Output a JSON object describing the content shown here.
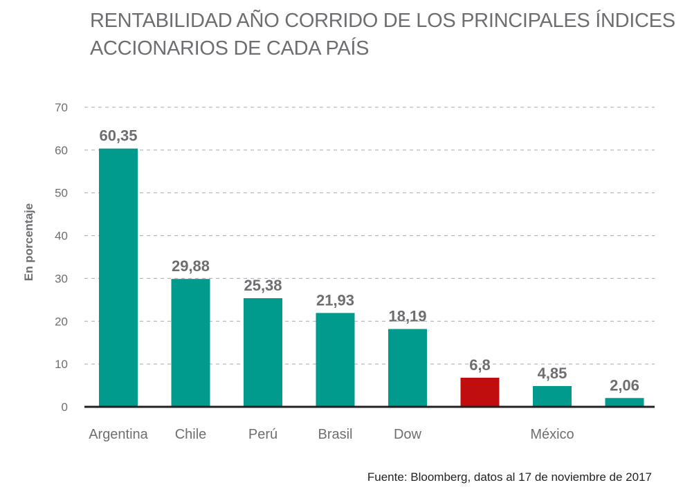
{
  "chart_data": {
    "type": "bar",
    "title_lines": [
      "RENTABILIDAD AÑO CORRIDO DE LOS PRINCIPALES ÍNDICES",
      "ACCIONARIOS DE CADA PAÍS"
    ],
    "ylabel": "En porcentaje",
    "xlabel": "",
    "ylim": [
      0,
      70
    ],
    "yticks": [
      0,
      10,
      20,
      30,
      40,
      50,
      60,
      70
    ],
    "grid": true,
    "categories": [
      "Argentina",
      "Chile",
      "Perú",
      "Brasil",
      "Dow",
      "",
      "México",
      ""
    ],
    "values": [
      60.35,
      29.88,
      25.38,
      21.93,
      18.19,
      6.8,
      4.85,
      2.06
    ],
    "data_labels": [
      "60,35",
      "29,88",
      "25,38",
      "21,93",
      "18,19",
      "6,8",
      "4,85",
      "2,06"
    ],
    "colors": [
      "#009b8d",
      "#009b8d",
      "#009b8d",
      "#009b8d",
      "#009b8d",
      "#c00d0d",
      "#009b8d",
      "#009b8d"
    ],
    "source": "Fuente: Bloomberg, datos al 17 de noviembre de 2017"
  }
}
